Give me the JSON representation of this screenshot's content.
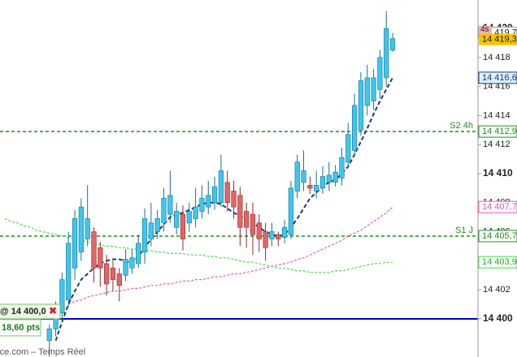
{
  "chart_data": {
    "type": "candlestick",
    "ylim": [
      14397.37,
      14421.96
    ],
    "yticks": [
      {
        "value": 14400,
        "label": "14 400"
      },
      {
        "value": 14402,
        "label": "14 402"
      },
      {
        "value": 14404,
        "label": "14 404"
      },
      {
        "value": 14406,
        "label": "14 406"
      },
      {
        "value": 14408,
        "label": "14 408"
      },
      {
        "value": 14410,
        "label": "14 410"
      },
      {
        "value": 14412,
        "label": "14 412"
      },
      {
        "value": 14414,
        "label": "14 414"
      },
      {
        "value": 14416,
        "label": "14 416"
      },
      {
        "value": 14418,
        "label": "14 418"
      },
      {
        "value": 14420,
        "label": "14 420"
      }
    ],
    "up_color": "#3ec6ee",
    "down_color": "#e06666",
    "open": [
      null,
      null,
      null,
      null,
      null,
      null,
      null,
      14398.5,
      14399.3,
      14400.4,
      14401.3,
      14403.5,
      14404.6,
      14405.5,
      14406.0,
      14404.9,
      14403.8,
      14403.5,
      14403.1,
      14403.0,
      14403.5,
      14403.8,
      14404.6,
      14405.5,
      14406.0,
      14406.6,
      14407.2,
      14406.3,
      14407.2,
      14406.6,
      14406.9,
      14407.4,
      14407.7,
      14408.0,
      14408.0,
      14409.4,
      14408.8,
      14408.5,
      14407.4,
      14407.2,
      14406.6,
      14406.0,
      14405.5,
      14405.8,
      14405.6,
      14405.8,
      14408.8,
      14409.4,
      14409.2,
      14408.8,
      14409.0,
      14409.4,
      14409.4,
      14409.7,
      14410.8,
      14411.6,
      14413.0,
      14414.7,
      14415.0,
      14415.8,
      14416.6,
      14418.5
    ],
    "high": [
      null,
      null,
      null,
      null,
      null,
      null,
      null,
      14399.6,
      14401.2,
      14403.2,
      14406.0,
      14407.5,
      14408.3,
      14409.2,
      14406.3,
      14405.3,
      14404.4,
      14404.0,
      14403.5,
      14404.8,
      14404.8,
      14405.8,
      14407.6,
      14408.0,
      14407.5,
      14409.0,
      14410.2,
      14408.0,
      14407.8,
      14408.0,
      14409.0,
      14409.2,
      14409.5,
      14409.8,
      14411.3,
      14410.2,
      14409.5,
      14409.1,
      14408.0,
      14408.0,
      14407.2,
      14406.6,
      14406.6,
      14406.0,
      14406.8,
      14409.5,
      14411.3,
      14411.6,
      14409.8,
      14410.2,
      14410.5,
      14410.8,
      14410.6,
      14411.8,
      14413.5,
      14415.5,
      14417.0,
      14417.5,
      14417.2,
      14418.5,
      14421.2,
      14419.7
    ],
    "low": [
      null,
      null,
      null,
      null,
      null,
      null,
      null,
      14397.4,
      14398.8,
      14399.8,
      14400.8,
      14402.7,
      14404.0,
      14405.0,
      14402.5,
      14402.2,
      14401.6,
      14401.9,
      14401.2,
      14402.6,
      14403.1,
      14403.5,
      14403.8,
      14405.0,
      14405.5,
      14406.0,
      14406.6,
      14405.8,
      14404.7,
      14406.0,
      14406.3,
      14406.9,
      14407.2,
      14407.5,
      14407.7,
      14407.4,
      14406.9,
      14405.0,
      14404.9,
      14404.4,
      14404.6,
      14404.0,
      14405.0,
      14405.0,
      14405.2,
      14405.5,
      14408.3,
      14408.8,
      14408.6,
      14408.3,
      14408.6,
      14408.8,
      14409.1,
      14409.2,
      14410.4,
      14411.2,
      14412.6,
      14414.0,
      14414.4,
      14415.2,
      14416.0,
      14418.4
    ],
    "close": [
      null,
      null,
      null,
      null,
      null,
      null,
      null,
      14399.3,
      14400.7,
      14402.7,
      14405.2,
      14406.9,
      14407.7,
      14406.9,
      14403.5,
      14403.5,
      14402.4,
      14402.7,
      14402.3,
      14404.1,
      14404.2,
      14405.2,
      14406.9,
      14406.6,
      14406.9,
      14408.3,
      14408.5,
      14407.4,
      14405.5,
      14407.4,
      14407.7,
      14408.3,
      14408.5,
      14409.1,
      14410.2,
      14408.0,
      14407.7,
      14406.3,
      14406.3,
      14405.8,
      14405.5,
      14404.9,
      14406.0,
      14405.5,
      14406.3,
      14409.0,
      14410.8,
      14410.2,
      14409.0,
      14409.2,
      14409.8,
      14409.9,
      14410.1,
      14411.1,
      14412.7,
      14414.7,
      14416.4,
      14416.6,
      14416.6,
      14418.0,
      14420.0,
      14419.3
    ],
    "indicators": [
      {
        "color": "#1a3a7a",
        "values": [
          null,
          null,
          null,
          null,
          null,
          null,
          null,
          null,
          14398.5,
          14399.8,
          14401.0,
          14401.9,
          14402.7,
          14403.1,
          14403.5,
          14403.8,
          14404.0,
          14404.1,
          14404.1,
          14404.0,
          14403.8,
          14404.3,
          14404.9,
          14405.5,
          14406.0,
          14406.5,
          14407.0,
          14407.2,
          14407.3,
          14407.5,
          14407.7,
          14407.9,
          14408.0,
          14408.0,
          14407.9,
          14407.6,
          14407.3,
          14407.1,
          14406.9,
          14406.6,
          14406.3,
          14406.0,
          14405.8,
          14405.7,
          14405.8,
          14406.3,
          14406.9,
          14407.6,
          14408.3,
          14408.7,
          14409.1,
          14409.4,
          14409.6,
          14410.0,
          14410.5,
          14411.3,
          14412.2,
          14413.1,
          14414.1,
          14415.0,
          14415.8,
          14416.6
        ],
        "last_label": "14 416,6",
        "box_fill": "#dff0fb",
        "text_color": "#1a3a7a"
      },
      {
        "color": "#ee55bb",
        "values": [
          null,
          null,
          null,
          null,
          null,
          null,
          null,
          null,
          null,
          null,
          14401.0,
          14401.2,
          14401.3,
          14401.5,
          14401.6,
          14401.7,
          14401.8,
          14401.9,
          14401.9,
          14402.0,
          14402.1,
          14402.1,
          14402.2,
          14402.3,
          14402.3,
          14402.4,
          14402.4,
          14402.5,
          14402.6,
          14402.6,
          14402.7,
          14402.7,
          14402.8,
          14402.9,
          14402.9,
          14403.0,
          14403.1,
          14403.1,
          14403.2,
          14403.3,
          14403.4,
          14403.5,
          14403.6,
          14403.7,
          14403.8,
          14403.9,
          14404.1,
          14404.2,
          14404.4,
          14404.6,
          14404.8,
          14405.0,
          14405.2,
          14405.4,
          14405.7,
          14405.9,
          14406.1,
          14406.4,
          14406.7,
          14407.0,
          14407.3,
          14407.7
        ],
        "last_label": "14 407,7",
        "box_fill": "#ffffff",
        "text_color": "#ee55bb"
      },
      {
        "color": "#44dd44",
        "values": [
          14406.9,
          14406.7,
          14406.6,
          14406.4,
          14406.3,
          14406.1,
          14406.0,
          14405.9,
          14405.8,
          14405.7,
          14405.6,
          14405.5,
          14405.4,
          14405.3,
          14405.2,
          14405.1,
          14405.0,
          14405.0,
          14404.9,
          14404.9,
          14404.8,
          14404.8,
          14404.7,
          14404.7,
          14404.6,
          14404.6,
          14404.5,
          14404.5,
          14404.5,
          14404.4,
          14404.4,
          14404.4,
          14404.3,
          14404.3,
          14404.2,
          14404.2,
          14404.1,
          14404.0,
          14403.9,
          14403.9,
          14403.8,
          14403.7,
          14403.6,
          14403.5,
          14403.5,
          14403.4,
          14403.3,
          14403.3,
          14403.2,
          14403.2,
          14403.2,
          14403.2,
          14403.3,
          14403.3,
          14403.4,
          14403.5,
          14403.6,
          14403.7,
          14403.8,
          14403.8,
          14403.9,
          14403.9
        ],
        "last_label": "14 403,9",
        "box_fill": "#ffffff",
        "text_color": "#22aa22"
      }
    ],
    "levels": [
      {
        "label": "S2 4h",
        "value": 14412.9,
        "value_label": "14 412,9",
        "color": "#1f8f1f",
        "dashed": true
      },
      {
        "label": "S1 J",
        "value": 14405.7,
        "value_label": "14 405,7",
        "color": "#1f8f1f",
        "dashed": true
      }
    ],
    "high_marker": {
      "value": 14419.7,
      "label": "14 419,7"
    },
    "last_marker": {
      "value": 14419.3,
      "label": "14 419,3",
      "timer": "4s"
    },
    "order": {
      "value": 14400,
      "label": "@ 14 400,0",
      "color": "#0000cc",
      "points_label": "18,60 pts"
    },
    "watermark": "rce.com – Temps Réel"
  }
}
